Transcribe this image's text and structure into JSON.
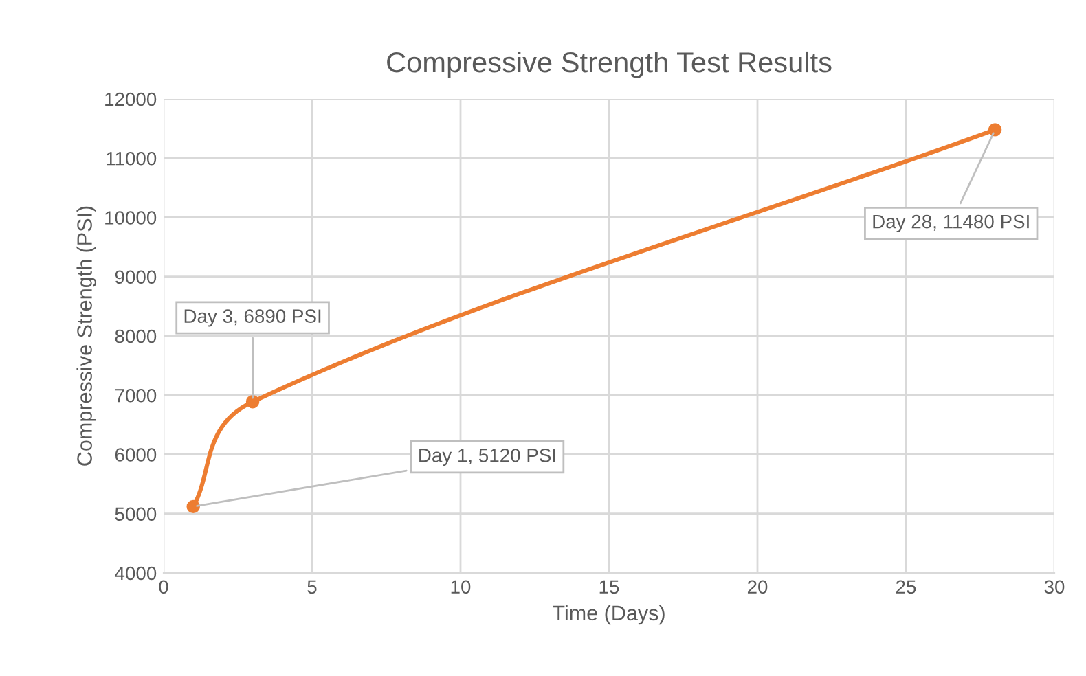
{
  "chart_data": {
    "type": "line",
    "title": "Compressive Strength Test Results",
    "xlabel": "Time (Days)",
    "ylabel": "Compressive Strength (PSI)",
    "x": [
      1,
      3,
      28
    ],
    "series": [
      {
        "color": "#ed7d31",
        "values": [
          5120,
          6890,
          11480
        ]
      }
    ],
    "xlim": [
      0,
      30
    ],
    "xticks": [
      0,
      5,
      10,
      15,
      20,
      25,
      30
    ],
    "ylim": [
      4000,
      12000
    ],
    "yticks": [
      4000,
      5000,
      6000,
      7000,
      8000,
      9000,
      10000,
      11000,
      12000
    ],
    "grid": true,
    "marker": "circle",
    "line_style": "solid",
    "legend": false,
    "annotations": [
      {
        "text": "Day 1, 5120 PSI",
        "x": 1,
        "y": 5120
      },
      {
        "text": "Day 3, 6890 PSI",
        "x": 3,
        "y": 6890
      },
      {
        "text": "Day 28, 11480 PSI",
        "x": 28,
        "y": 11480
      }
    ]
  }
}
